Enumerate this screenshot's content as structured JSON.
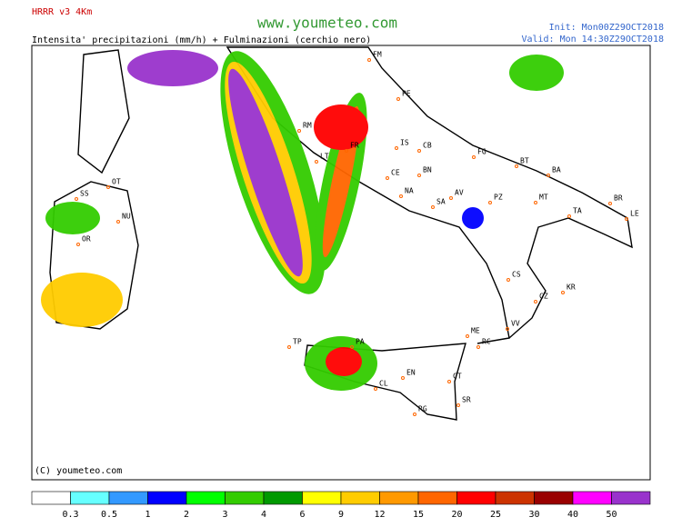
{
  "header": {
    "model": "HRRR v3 4Km",
    "subtitle": "Intensita' precipitazioni (mm/h) + Fulminazioni (cerchio nero)",
    "site": "www.youmeteo.com",
    "init": "Init: Mon00Z29OCT2018",
    "valid": "Valid: Mon 14:30Z29OCT2018"
  },
  "map": {
    "copyright": "(C) youmeteo.com",
    "labels": [
      "FM",
      "PE",
      "RM",
      "FR",
      "IS",
      "CB",
      "FG",
      "BT",
      "BA",
      "LT",
      "CE",
      "BN",
      "NA",
      "AV",
      "SA",
      "PZ",
      "MT",
      "TA",
      "BR",
      "LE",
      "SS",
      "OT",
      "NU",
      "OR",
      "CS",
      "KR",
      "CZ",
      "VV",
      "RC",
      "ME",
      "PA",
      "TP",
      "CL",
      "EN",
      "CT",
      "SR",
      "RG"
    ]
  },
  "legend": {
    "colors": [
      "#ffffff",
      "#66ffff",
      "#3399ff",
      "#0000ff",
      "#00ff00",
      "#33cc00",
      "#009900",
      "#ffff00",
      "#ffcc00",
      "#ff9900",
      "#ff6600",
      "#ff0000",
      "#cc3300",
      "#990000",
      "#ff00ff",
      "#9933cc"
    ],
    "values": [
      0.3,
      0.5,
      1,
      2,
      3,
      4,
      6,
      9,
      12,
      15,
      20,
      25,
      30,
      40,
      50
    ]
  }
}
